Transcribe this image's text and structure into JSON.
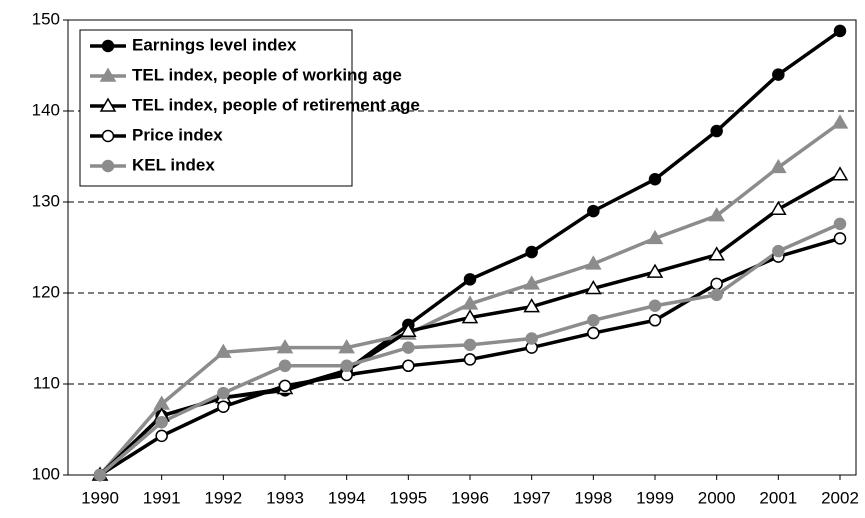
{
  "chart_data": {
    "type": "line",
    "categories": [
      "1990",
      "1991",
      "1992",
      "1993",
      "1994",
      "1995",
      "1996",
      "1997",
      "1998",
      "1999",
      "2000",
      "2001",
      "2002"
    ],
    "series": [
      {
        "name": "Earnings level index",
        "color": "#000000",
        "marker": "circle",
        "filled": true,
        "values": [
          100,
          106.5,
          108.5,
          109.3,
          111.5,
          116.5,
          121.5,
          124.5,
          129,
          132.5,
          137.8,
          144,
          148.8
        ]
      },
      {
        "name": "TEL index, people of working age",
        "color": "#8c8c8c",
        "marker": "triangle",
        "filled": true,
        "values": [
          100,
          107.8,
          113.5,
          114,
          114,
          115.5,
          118.8,
          121,
          123.2,
          126,
          128.5,
          133.8,
          138.7
        ]
      },
      {
        "name": "TEL index, people of retirement age",
        "color": "#000000",
        "marker": "triangle",
        "filled": false,
        "values": [
          100,
          106.5,
          108.5,
          109.5,
          111.5,
          115.8,
          117.3,
          118.5,
          120.5,
          122.3,
          124.2,
          129.2,
          133
        ]
      },
      {
        "name": "Price index",
        "color": "#000000",
        "marker": "circle",
        "filled": false,
        "values": [
          100,
          104.3,
          107.5,
          109.8,
          111,
          112,
          112.7,
          114,
          115.6,
          117,
          121,
          124,
          126
        ]
      },
      {
        "name": "KEL index",
        "color": "#8c8c8c",
        "marker": "circle",
        "filled": true,
        "values": [
          100,
          105.8,
          109,
          112,
          112,
          114,
          114.3,
          115,
          117,
          118.6,
          119.8,
          124.6,
          127.6
        ]
      }
    ],
    "ylim": [
      100,
      150
    ],
    "yticks": [
      100,
      110,
      120,
      130,
      140,
      150
    ],
    "grid": true,
    "legend": "top-left"
  }
}
